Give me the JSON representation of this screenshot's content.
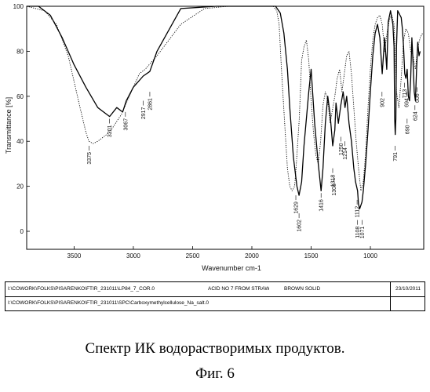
{
  "chart_data": {
    "type": "line",
    "title": "",
    "xlabel": "Wavenumber cm-1",
    "ylabel": "Transmittance [%]",
    "xlim": [
      3900,
      550
    ],
    "ylim": [
      -8,
      100
    ],
    "x_reversed": true,
    "x_ticks": [
      3500,
      3000,
      2500,
      2000,
      1500,
      1000
    ],
    "y_ticks": [
      0,
      20,
      40,
      60,
      80,
      100
    ],
    "grid": false,
    "series": [
      {
        "style": "solid",
        "x": [
          3900,
          3800,
          3700,
          3600,
          3500,
          3400,
          3300,
          3200,
          3140,
          3090,
          3060,
          3000,
          2917,
          2861,
          2800,
          2600,
          2300,
          2000,
          1800,
          1760,
          1730,
          1700,
          1680,
          1650,
          1620,
          1602,
          1580,
          1560,
          1520,
          1500,
          1470,
          1440,
          1416,
          1400,
          1380,
          1360,
          1340,
          1318,
          1300,
          1290,
          1270,
          1250,
          1230,
          1214,
          1200,
          1180,
          1160,
          1140,
          1125,
          1108,
          1100,
          1090,
          1071,
          1060,
          1040,
          1020,
          1000,
          980,
          960,
          940,
          920,
          900,
          880,
          862,
          850,
          830,
          810,
          800,
          795,
          790,
          785,
          780,
          770,
          760,
          750,
          740,
          730,
          720,
          710,
          700,
          690,
          680,
          670,
          660,
          650,
          640,
          630,
          620,
          610,
          600,
          590,
          580
        ],
        "y": [
          100,
          100,
          96,
          86,
          74,
          64,
          55,
          51,
          55,
          53,
          58,
          64,
          69,
          71,
          80,
          99,
          100,
          100,
          100,
          97,
          88,
          72,
          55,
          33,
          20,
          16,
          22,
          38,
          62,
          72,
          48,
          30,
          18,
          28,
          48,
          60,
          52,
          38,
          45,
          57,
          48,
          56,
          62,
          55,
          60,
          48,
          40,
          28,
          22,
          18,
          12,
          10,
          13,
          18,
          30,
          45,
          62,
          78,
          88,
          92,
          86,
          70,
          86,
          72,
          93,
          98,
          92,
          82,
          50,
          43,
          50,
          82,
          98,
          97,
          96,
          95,
          90,
          82,
          70,
          68,
          72,
          60,
          58,
          68,
          86,
          75,
          62,
          58,
          72,
          84,
          78,
          80
        ]
      },
      {
        "style": "dotted",
        "x": [
          3900,
          3750,
          3650,
          3550,
          3450,
          3400,
          3375,
          3340,
          3300,
          3200,
          3100,
          3000,
          2950,
          2900,
          2800,
          2600,
          2400,
          2200,
          2000,
          1900,
          1820,
          1790,
          1770,
          1750,
          1720,
          1700,
          1680,
          1660,
          1640,
          1630,
          1600,
          1580,
          1560,
          1540,
          1520,
          1500,
          1480,
          1460,
          1440,
          1420,
          1400,
          1380,
          1360,
          1340,
          1320,
          1300,
          1280,
          1260,
          1240,
          1220,
          1200,
          1180,
          1160,
          1140,
          1120,
          1100,
          1080,
          1060,
          1040,
          1020,
          1000,
          980,
          960,
          940,
          920,
          900,
          880,
          860,
          840,
          820,
          800,
          780,
          760,
          740,
          720,
          700,
          680,
          660,
          640,
          620,
          600,
          580,
          560
        ],
        "y": [
          100,
          98,
          92,
          78,
          55,
          44,
          40,
          39,
          40,
          44,
          52,
          64,
          70,
          72,
          78,
          92,
          99,
          100,
          100,
          100,
          100,
          98,
          92,
          72,
          45,
          28,
          20,
          18,
          20,
          26,
          50,
          76,
          82,
          85,
          76,
          58,
          44,
          34,
          30,
          40,
          56,
          62,
          58,
          48,
          54,
          60,
          68,
          72,
          62,
          70,
          78,
          80,
          70,
          55,
          40,
          28,
          18,
          22,
          35,
          55,
          72,
          85,
          92,
          95,
          96,
          92,
          80,
          88,
          94,
          96,
          92,
          62,
          55,
          68,
          85,
          90,
          88,
          80,
          78,
          72,
          82,
          86,
          88
        ]
      }
    ],
    "peak_labels": [
      {
        "text": "3375",
        "x": 3375,
        "y": 38
      },
      {
        "text": "3201",
        "x": 3201,
        "y": 50
      },
      {
        "text": "3067",
        "x": 3067,
        "y": 53
      },
      {
        "text": "2917",
        "x": 2917,
        "y": 58
      },
      {
        "text": "2861",
        "x": 2861,
        "y": 62
      },
      {
        "text": "1629",
        "x": 1629,
        "y": 16
      },
      {
        "text": "1602",
        "x": 1602,
        "y": 8
      },
      {
        "text": "1416",
        "x": 1416,
        "y": 17
      },
      {
        "text": "1318",
        "x": 1318,
        "y": 28
      },
      {
        "text": "1308",
        "x": 1308,
        "y": 24
      },
      {
        "text": "1250",
        "x": 1250,
        "y": 42
      },
      {
        "text": "1214",
        "x": 1214,
        "y": 40
      },
      {
        "text": "1112",
        "x": 1112,
        "y": 14
      },
      {
        "text": "1108",
        "x": 1108,
        "y": 5
      },
      {
        "text": "1071",
        "x": 1071,
        "y": 5
      },
      {
        "text": "902",
        "x": 902,
        "y": 62
      },
      {
        "text": "791",
        "x": 791,
        "y": 38
      },
      {
        "text": "713",
        "x": 713,
        "y": 66
      },
      {
        "text": "694",
        "x": 694,
        "y": 62
      },
      {
        "text": "690",
        "x": 690,
        "y": 50
      },
      {
        "text": "624",
        "x": 624,
        "y": 56
      },
      {
        "text": "606",
        "x": 606,
        "y": 64
      }
    ]
  },
  "legend_table": {
    "row1": {
      "path": "I:\\COWORK\\FOLKS\\PISARENKO\\FTIR_231011\\LP84_7_COR.0",
      "name": "ACID NO 7 FROM STRAW",
      "form": "BROWN SOLID",
      "date": "23/10/2011"
    },
    "row2": {
      "path": "I:\\COWORK\\FOLKS\\PISARENKO\\FTIR_231011\\SPC\\Carboxymethylcellulose_Na_salt.0"
    }
  },
  "caption": {
    "line1": "Спектр ИК водорастворимых продуктов.",
    "line2": "Фиг. 6"
  }
}
